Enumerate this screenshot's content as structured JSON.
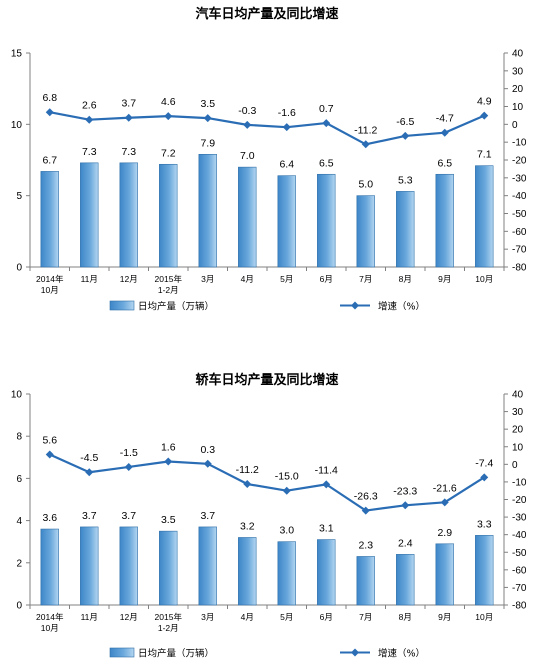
{
  "chart_data": [
    {
      "type": "bar",
      "title": "汽车日均产量及同比增速",
      "categories": [
        [
          "2014年",
          "10月"
        ],
        [
          "11月"
        ],
        [
          "12月"
        ],
        [
          "2015年",
          "1-2月"
        ],
        [
          "3月"
        ],
        [
          "4月"
        ],
        [
          "5月"
        ],
        [
          "6月"
        ],
        [
          "7月"
        ],
        [
          "8月"
        ],
        [
          "9月"
        ],
        [
          "10月"
        ]
      ],
      "y_left": {
        "min": 0,
        "max": 15,
        "ticks": [
          0,
          5,
          10,
          15
        ]
      },
      "y_right": {
        "min": -80,
        "max": 40,
        "ticks": [
          40,
          30,
          20,
          10,
          0,
          -10,
          -20,
          -30,
          -40,
          -50,
          -60,
          -70,
          -80
        ]
      },
      "grid": false,
      "legend_position": "bottom",
      "series": [
        {
          "name": "日均产量（万辆）",
          "type": "bar",
          "axis": "left",
          "values": [
            6.7,
            7.3,
            7.3,
            7.2,
            7.9,
            7.0,
            6.4,
            6.5,
            5.0,
            5.3,
            6.5,
            7.1
          ],
          "labels": [
            "6.7",
            "7.3",
            "7.3",
            "7.2",
            "7.9",
            "7.0",
            "6.4",
            "6.5",
            "5.0",
            "5.3",
            "6.5",
            "7.1"
          ]
        },
        {
          "name": "增速（%）",
          "type": "line",
          "axis": "right",
          "values": [
            6.8,
            2.6,
            3.7,
            4.6,
            3.5,
            -0.3,
            -1.6,
            0.7,
            -11.2,
            -6.5,
            -4.7,
            4.9
          ],
          "labels": [
            "6.8",
            "2.6",
            "3.7",
            "4.6",
            "3.5",
            "-0.3",
            "-1.6",
            "0.7",
            "-11.2",
            "-6.5",
            "-4.7",
            "4.9"
          ]
        }
      ]
    },
    {
      "type": "bar",
      "title": "轿车日均产量及同比增速",
      "categories": [
        [
          "2014年",
          "10月"
        ],
        [
          "11月"
        ],
        [
          "12月"
        ],
        [
          "2015年",
          "1-2月"
        ],
        [
          "3月"
        ],
        [
          "4月"
        ],
        [
          "5月"
        ],
        [
          "6月"
        ],
        [
          "7月"
        ],
        [
          "8月"
        ],
        [
          "9月"
        ],
        [
          "10月"
        ]
      ],
      "y_left": {
        "min": 0,
        "max": 10,
        "ticks": [
          0,
          2,
          4,
          6,
          8,
          10
        ]
      },
      "y_right": {
        "min": -80,
        "max": 40,
        "ticks": [
          40,
          30,
          20,
          10,
          0,
          -10,
          -20,
          -30,
          -40,
          -50,
          -60,
          -70,
          -80
        ]
      },
      "grid": false,
      "legend_position": "bottom",
      "series": [
        {
          "name": "日均产量（万辆）",
          "type": "bar",
          "axis": "left",
          "values": [
            3.6,
            3.7,
            3.7,
            3.5,
            3.7,
            3.2,
            3.0,
            3.1,
            2.3,
            2.4,
            2.9,
            3.3
          ],
          "labels": [
            "3.6",
            "3.7",
            "3.7",
            "3.5",
            "3.7",
            "3.2",
            "3.0",
            "3.1",
            "2.3",
            "2.4",
            "2.9",
            "3.3"
          ]
        },
        {
          "name": "增速（%）",
          "type": "line",
          "axis": "right",
          "values": [
            5.6,
            -4.5,
            -1.5,
            1.6,
            0.3,
            -11.2,
            -15.0,
            -11.4,
            -26.3,
            -23.3,
            -21.6,
            -7.4
          ],
          "labels": [
            "5.6",
            "-4.5",
            "-1.5",
            "1.6",
            "0.3",
            "-11.2",
            "-15.0",
            "-11.4",
            "-26.3",
            "-23.3",
            "-21.6",
            "-7.4"
          ]
        }
      ]
    }
  ],
  "colors": {
    "bar_top": "#b4d6f0",
    "bar_mid": "#6aa8dc",
    "bar_bottom": "#3d86c8",
    "bar_stroke": "#2f6fa8",
    "line": "#2a6db5",
    "axis": "#808080",
    "text": "#000000"
  },
  "icons": {
    "line_marker": "diamond-icon",
    "bar_swatch": "bar-swatch-icon"
  }
}
